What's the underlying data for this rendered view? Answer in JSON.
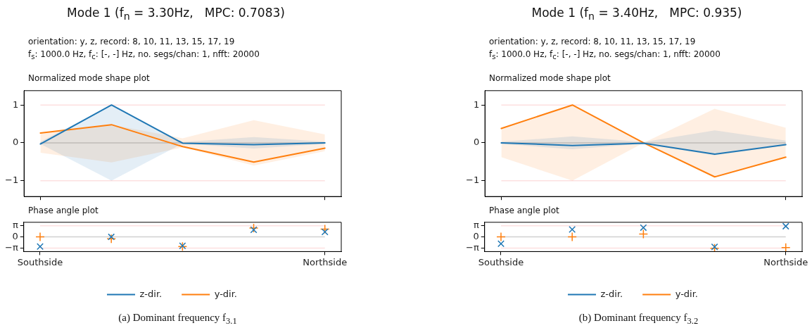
{
  "chart_data": [
    {
      "type": "line",
      "title": "Mode 1 (f$_{n}$ = 3.30Hz,   MPC: 0.7083)",
      "subtitle": "Normalized mode shape plot",
      "annotations": [
        "orientation: y, z, record: 8, 10, 11, 13, 15, 17, 19",
        "f$_{s}$: 1000.0 Hz, f$_{c}$: [-, -] Hz, no. segs/chan: 1, nfft: 20000"
      ],
      "categories": [
        null,
        null,
        null,
        null,
        null
      ],
      "tick_labels": "y",
      "ylim": [
        -1.42,
        1.38
      ],
      "yticks": [
        {
          "value": -1,
          "label": "−1"
        },
        {
          "value": 0,
          "label": "0"
        },
        {
          "value": 1,
          "label": "1"
        }
      ],
      "ref_lines": [
        {
          "axis": "y",
          "value": 1,
          "color": "#fde0e0"
        },
        {
          "axis": "y",
          "value": -1,
          "color": "#fde0e0"
        },
        {
          "axis": "y",
          "value": 0,
          "color": "#d0d0d0"
        }
      ],
      "series": [
        {
          "color": "#1f77b4",
          "values": [
            -0.03,
            1.0,
            -0.01,
            -0.05,
            0.0
          ],
          "lower": [
            -0.03,
            -1.0,
            -0.02,
            -0.15,
            -0.03
          ],
          "upper": [
            0.03,
            1.0,
            0.02,
            0.15,
            0.03
          ]
        },
        {
          "color": "#ff7f0e",
          "values": [
            0.26,
            0.48,
            -0.1,
            -0.51,
            -0.14
          ],
          "lower": [
            -0.26,
            -0.52,
            -0.12,
            -0.6,
            -0.22
          ],
          "upper": [
            0.26,
            0.48,
            0.12,
            0.6,
            0.22
          ]
        }
      ]
    },
    {
      "type": "scatter",
      "title": "Phase angle plot",
      "annotations": [
        "(a) Dominant frequency f$_{3.1}$"
      ],
      "categories": [
        "Southside",
        null,
        null,
        null,
        "Northside"
      ],
      "ylim": [
        -4.1,
        4.1
      ],
      "yticks": [
        {
          "value": -3.14159,
          "label": "−π"
        },
        0,
        {
          "value": 3.14159,
          "label": "π"
        }
      ],
      "legend": "bottom",
      "ref_lines": [
        {
          "axis": "y",
          "value": 3.14159,
          "color": "#fde0e0"
        },
        {
          "axis": "y",
          "value": -3.14159,
          "color": "#fde0e0"
        },
        {
          "axis": "y",
          "value": 0,
          "color": "#d0d0d0"
        }
      ],
      "series": [
        {
          "name": "z-dir.",
          "color": "#1f77b4",
          "marker": "x",
          "values": [
            -2.7,
            0.0,
            -2.5,
            2.0,
            1.4
          ]
        },
        {
          "name": "y-dir.",
          "color": "#ff7f0e",
          "marker": "cross",
          "values": [
            0.0,
            -0.5,
            -2.7,
            2.5,
            2.2
          ]
        }
      ]
    },
    {
      "type": "line",
      "title": "Mode 1 (f$_{n}$ = 3.40Hz,   MPC: 0.935)",
      "subtitle": "Normalized mode shape plot",
      "annotations": [
        "orientation: y, z, record: 8, 10, 11, 13, 15, 17, 19",
        "f$_{s}$: 1000.0 Hz, f$_{c}$: [-, -] Hz, no. segs/chan: 1, nfft: 20000"
      ],
      "categories": [
        null,
        null,
        null,
        null,
        null
      ],
      "tick_labels": "y",
      "ylim": [
        -1.42,
        1.38
      ],
      "yticks": [
        {
          "value": -1,
          "label": "−1"
        },
        {
          "value": 0,
          "label": "0"
        },
        {
          "value": 1,
          "label": "1"
        }
      ],
      "ref_lines": [
        {
          "axis": "y",
          "value": 1,
          "color": "#fde0e0"
        },
        {
          "axis": "y",
          "value": -1,
          "color": "#fde0e0"
        },
        {
          "axis": "y",
          "value": 0,
          "color": "#d0d0d0"
        }
      ],
      "series": [
        {
          "color": "#1f77b4",
          "values": [
            0.0,
            -0.07,
            -0.01,
            -0.3,
            -0.05
          ],
          "lower": [
            -0.03,
            -0.17,
            -0.02,
            -0.33,
            -0.06
          ],
          "upper": [
            0.03,
            0.17,
            0.02,
            0.33,
            0.06
          ]
        },
        {
          "color": "#ff7f0e",
          "values": [
            0.38,
            1.0,
            0.0,
            -0.9,
            -0.38
          ],
          "lower": [
            -0.38,
            -1.0,
            0.0,
            -0.9,
            -0.4
          ],
          "upper": [
            0.38,
            1.0,
            0.0,
            0.9,
            0.4
          ]
        }
      ]
    },
    {
      "type": "scatter",
      "title": "Phase angle plot",
      "annotations": [
        "(b) Dominant frequency f$_{3.2}$"
      ],
      "categories": [
        "Southside",
        null,
        null,
        null,
        "Northside"
      ],
      "ylim": [
        -4.1,
        4.1
      ],
      "yticks": [
        {
          "value": -3.14159,
          "label": "−π"
        },
        0,
        {
          "value": 3.14159,
          "label": "π"
        }
      ],
      "legend": "bottom",
      "ref_lines": [
        {
          "axis": "y",
          "value": 3.14159,
          "color": "#fde0e0"
        },
        {
          "axis": "y",
          "value": -3.14159,
          "color": "#fde0e0"
        },
        {
          "axis": "y",
          "value": 0,
          "color": "#d0d0d0"
        }
      ],
      "series": [
        {
          "name": "z-dir.",
          "color": "#1f77b4",
          "marker": "x",
          "values": [
            -1.9,
            2.1,
            2.6,
            -2.8,
            3.0
          ]
        },
        {
          "name": "y-dir.",
          "color": "#ff7f0e",
          "marker": "cross",
          "values": [
            0.0,
            0.0,
            0.8,
            -3.2,
            -3.0
          ]
        }
      ]
    }
  ]
}
